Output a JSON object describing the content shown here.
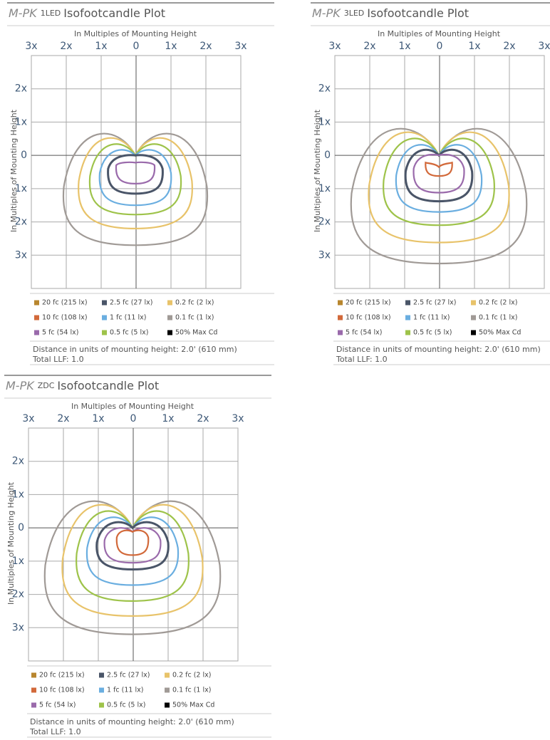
{
  "plots": [
    {
      "title": {
        "brand": "M-PK",
        "variant": "1LED",
        "suffix": "Isofootcandle Plot"
      },
      "x_axis_title": "In Multiples of Mounting Height",
      "y_axis_title": "In Multiples of Mounting Height",
      "x_labels": [
        "3x",
        "2x",
        "1x",
        "0",
        "1x",
        "2x",
        "3x"
      ],
      "y_labels": [
        "2x",
        "1x",
        "0",
        "1x",
        "2x",
        "3x"
      ],
      "legend": [
        {
          "label": "20 fc (215 lx)",
          "color": "#b8862e"
        },
        {
          "label": "2.5 fc (27 lx)",
          "color": "#4a5568"
        },
        {
          "label": "0.2 fc (2 lx)",
          "color": "#e8c36a"
        },
        {
          "label": "10 fc (108 lx)",
          "color": "#d2693a"
        },
        {
          "label": "1 fc (11 lx)",
          "color": "#6aaee0"
        },
        {
          "label": "0.1 fc (1 lx)",
          "color": "#a09a96"
        },
        {
          "label": "5 fc (54 lx)",
          "color": "#9a6aab"
        },
        {
          "label": "0.5 fc (5 lx)",
          "color": "#9ec34a"
        },
        {
          "label": "50% Max Cd",
          "color": "#000000"
        }
      ],
      "notes": [
        "Distance in units of mounting height: 2.0' (610 mm)",
        "Total LLF: 1.0"
      ]
    },
    {
      "title": {
        "brand": "M-PK",
        "variant": "3LED",
        "suffix": "Isofootcandle Plot"
      },
      "x_axis_title": "In Multiples of Mounting Height",
      "y_axis_title": "In Multiples of Mounting Height",
      "x_labels": [
        "3x",
        "2x",
        "1x",
        "0",
        "1x",
        "2x",
        "3x"
      ],
      "y_labels": [
        "2x",
        "1x",
        "0",
        "1x",
        "2x",
        "3x"
      ],
      "legend": [
        {
          "label": "20 fc (215 lx)",
          "color": "#b8862e"
        },
        {
          "label": "2.5 fc (27 lx)",
          "color": "#4a5568"
        },
        {
          "label": "0.2 fc (2 lx)",
          "color": "#e8c36a"
        },
        {
          "label": "10 fc (108 lx)",
          "color": "#d2693a"
        },
        {
          "label": "1 fc (11 lx)",
          "color": "#6aaee0"
        },
        {
          "label": "0.1 fc (1 lx)",
          "color": "#a09a96"
        },
        {
          "label": "5 fc (54 lx)",
          "color": "#9a6aab"
        },
        {
          "label": "0.5 fc (5 lx)",
          "color": "#9ec34a"
        },
        {
          "label": "50% Max Cd",
          "color": "#000000"
        }
      ],
      "notes": [
        "Distance in units of mounting height: 2.0' (610 mm)",
        "Total LLF: 1.0"
      ]
    },
    {
      "title": {
        "brand": "M-PK",
        "variant": "ZDC",
        "suffix": "Isofootcandle Plot"
      },
      "x_axis_title": "In Multiples of Mounting Height",
      "y_axis_title": "In Multiples of Mounting Height",
      "x_labels": [
        "3x",
        "2x",
        "1x",
        "0",
        "1x",
        "2x",
        "3x"
      ],
      "y_labels": [
        "2x",
        "1x",
        "0",
        "1x",
        "2x",
        "3x"
      ],
      "legend": [
        {
          "label": "20 fc (215 lx)",
          "color": "#b8862e"
        },
        {
          "label": "2.5 fc (27 lx)",
          "color": "#4a5568"
        },
        {
          "label": "0.2 fc (2 lx)",
          "color": "#e8c36a"
        },
        {
          "label": "10 fc (108 lx)",
          "color": "#d2693a"
        },
        {
          "label": "1 fc (11 lx)",
          "color": "#6aaee0"
        },
        {
          "label": "0.1 fc (1 lx)",
          "color": "#a09a96"
        },
        {
          "label": "5 fc (54 lx)",
          "color": "#9a6aab"
        },
        {
          "label": "0.5 fc (5 lx)",
          "color": "#9ec34a"
        },
        {
          "label": "50% Max Cd",
          "color": "#000000"
        }
      ],
      "notes": [
        "Distance in units of mounting height: 2.0' (610 mm)",
        "Total LLF: 1.0"
      ]
    }
  ]
}
